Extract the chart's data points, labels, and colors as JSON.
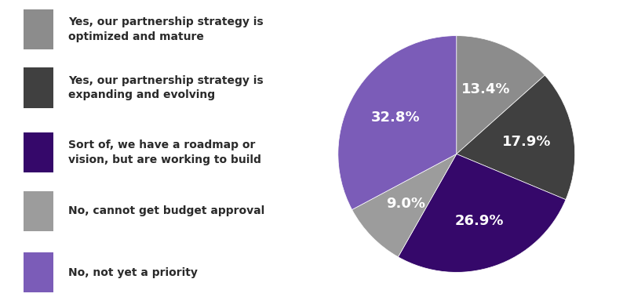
{
  "labels": [
    "Yes, our partnership strategy is\noptimized and mature",
    "Yes, our partnership strategy is\nexpanding and evolving",
    "Sort of, we have a roadmap or\nvision, but are working to build",
    "No, cannot get budget approval",
    "No, not yet a priority"
  ],
  "values": [
    13.4,
    17.9,
    26.9,
    9.0,
    32.8
  ],
  "colors": [
    "#8c8c8c",
    "#404040",
    "#35086a",
    "#9c9c9c",
    "#7b5cb8"
  ],
  "pct_labels": [
    "13.4%",
    "17.9%",
    "26.9%",
    "9.0%",
    "32.8%"
  ],
  "text_color": "#ffffff",
  "background_color": "#ffffff",
  "label_fontsize": 10,
  "pct_fontsize": 13,
  "startangle": 90
}
